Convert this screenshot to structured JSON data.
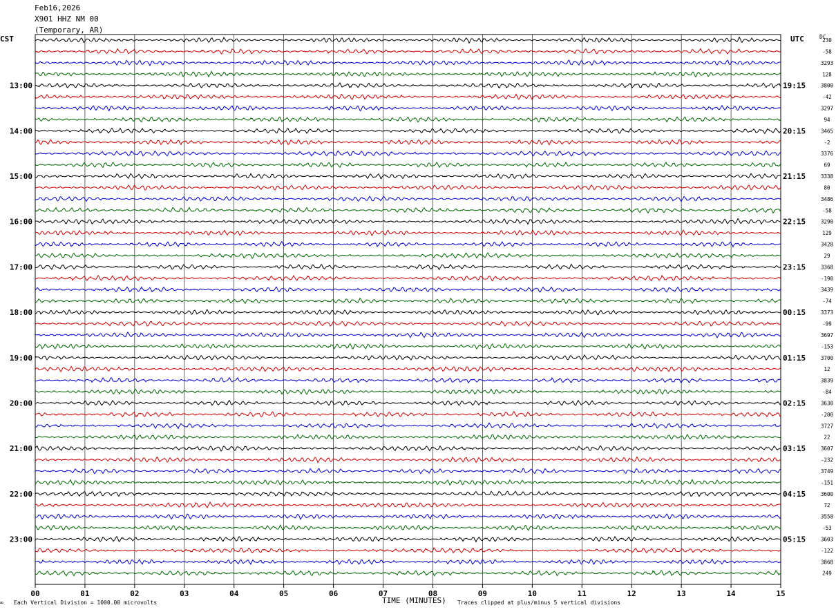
{
  "header": {
    "date": "Feb16,2026",
    "station": "X901 HHZ NM 00",
    "location": "(Temporary, AR)"
  },
  "left_axis_label": "CST",
  "right_axis_label": "UTC",
  "dc_label": "DC",
  "footer": {
    "scale_note": "Each Vertical Division = 1000.00 microvolts",
    "xlabel": "TIME (MINUTES)",
    "clip_note": "Traces clipped at plus/minus 5 vertical divisions"
  },
  "colors": {
    "trace_cycle": [
      "#000000",
      "#cc0000",
      "#0000cc",
      "#006600"
    ],
    "grid": "#000000"
  },
  "chart_data": {
    "type": "line",
    "title": "",
    "xlabel": "TIME (MINUTES)",
    "xlim": [
      0,
      15
    ],
    "x_ticks": [
      "00",
      "01",
      "02",
      "03",
      "04",
      "05",
      "06",
      "07",
      "08",
      "09",
      "10",
      "11",
      "12",
      "13",
      "14",
      "15"
    ],
    "traces_per_hour": 4,
    "minutes_per_trace": 15,
    "left_hour_labels": [
      "13:00",
      "14:00",
      "15:00",
      "16:00",
      "17:00",
      "18:00",
      "19:00",
      "20:00",
      "21:00",
      "22:00",
      "23:00"
    ],
    "right_hour_labels": [
      "19:15",
      "20:15",
      "21:15",
      "22:15",
      "23:15",
      "00:15",
      "01:15",
      "02:15",
      "03:15",
      "04:15",
      "05:15"
    ],
    "dc_offsets": [
      "230",
      "-58",
      "3293",
      "128",
      "3800",
      "-42",
      "3297",
      "94",
      "3465",
      "-2",
      "3376",
      "69",
      "3338",
      "80",
      "3486",
      "-58",
      "3290",
      "129",
      "3428",
      "29",
      "3368",
      "-190",
      "3439",
      "-74",
      "3373",
      "-99",
      "3697",
      "-153",
      "3700",
      "12",
      "3839",
      "-84",
      "3630",
      "-200",
      "3727",
      "22",
      "3607",
      "-232",
      "3749",
      "-151",
      "3600",
      "72",
      "3558",
      "-53",
      "3603",
      "-122",
      "3868",
      "249"
    ]
  }
}
